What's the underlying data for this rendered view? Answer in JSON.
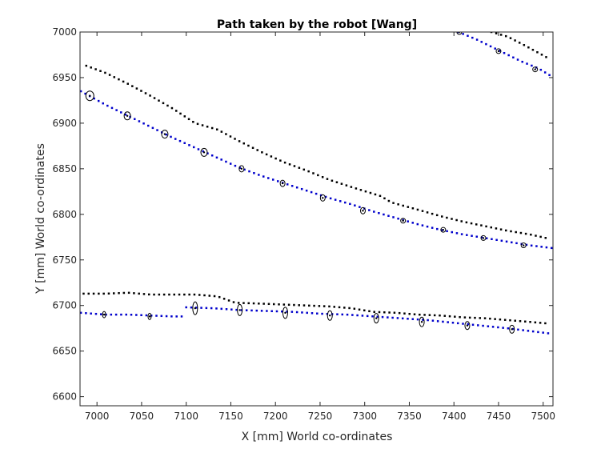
{
  "chart_data": {
    "type": "scatter",
    "title": "Path taken by the robot [Wang]",
    "xlabel": "X [mm] World co-ordinates",
    "ylabel": "Y [mm] World co-ordinates",
    "xlim": [
      6981,
      7511
    ],
    "ylim": [
      6590,
      7000
    ],
    "xticks": [
      7000,
      7050,
      7100,
      7150,
      7200,
      7250,
      7300,
      7350,
      7400,
      7450,
      7500
    ],
    "yticks": [
      6600,
      6650,
      6700,
      6750,
      6800,
      6850,
      6900,
      6950,
      7000
    ],
    "grid": false,
    "series": [
      {
        "color": "#000000",
        "marker": "dot",
        "segments": [
          [
            [
              6988,
              6963
            ],
            [
              7010,
              6955
            ],
            [
              7035,
              6943
            ],
            [
              7060,
              6930
            ],
            [
              7085,
              6916
            ],
            [
              7110,
              6900
            ],
            [
              7135,
              6893
            ],
            [
              7160,
              6880
            ],
            [
              7185,
              6868
            ],
            [
              7210,
              6857
            ],
            [
              7235,
              6848
            ],
            [
              7260,
              6838
            ],
            [
              7285,
              6830
            ],
            [
              7318,
              6820
            ],
            [
              7330,
              6813
            ],
            [
              7360,
              6805
            ],
            [
              7385,
              6798
            ],
            [
              7410,
              6792
            ],
            [
              7435,
              6787
            ],
            [
              7460,
              6782
            ],
            [
              7485,
              6778
            ],
            [
              7508,
              6773
            ]
          ],
          [
            [
              7442,
              7000
            ],
            [
              7460,
              6995
            ],
            [
              7480,
              6985
            ],
            [
              7495,
              6977
            ],
            [
              7508,
              6970
            ]
          ],
          [
            [
              6985,
              6713
            ],
            [
              7010,
              6713
            ],
            [
              7035,
              6714
            ],
            [
              7060,
              6712
            ],
            [
              7085,
              6712
            ],
            [
              7110,
              6712
            ],
            [
              7135,
              6710
            ],
            [
              7155,
              6703
            ],
            [
              7185,
              6702
            ],
            [
              7210,
              6701
            ],
            [
              7235,
              6700
            ],
            [
              7260,
              6699
            ],
            [
              7285,
              6697
            ],
            [
              7310,
              6693
            ],
            [
              7335,
              6692
            ],
            [
              7360,
              6690
            ],
            [
              7385,
              6689
            ],
            [
              7410,
              6687
            ],
            [
              7435,
              6686
            ],
            [
              7460,
              6684
            ],
            [
              7485,
              6682
            ],
            [
              7508,
              6680
            ]
          ]
        ]
      },
      {
        "color": "#0000cc",
        "marker": "dot",
        "segments": [
          [
            [
              6982,
              6935
            ],
            [
              7010,
              6920
            ],
            [
              7035,
              6908
            ],
            [
              7060,
              6896
            ],
            [
              7085,
              6884
            ],
            [
              7110,
              6873
            ],
            [
              7135,
              6862
            ],
            [
              7160,
              6851
            ],
            [
              7185,
              6842
            ],
            [
              7210,
              6834
            ],
            [
              7235,
              6826
            ],
            [
              7260,
              6818
            ],
            [
              7285,
              6811
            ],
            [
              7310,
              6803
            ],
            [
              7335,
              6796
            ],
            [
              7360,
              6789
            ],
            [
              7385,
              6783
            ],
            [
              7410,
              6778
            ],
            [
              7435,
              6774
            ],
            [
              7460,
              6770
            ],
            [
              7485,
              6766
            ],
            [
              7510,
              6763
            ]
          ],
          [
            [
              7405,
              7000
            ],
            [
              7425,
              6992
            ],
            [
              7450,
              6980
            ],
            [
              7475,
              6968
            ],
            [
              7495,
              6960
            ],
            [
              7510,
              6951
            ]
          ],
          [
            [
              6982,
              6692
            ],
            [
              7010,
              6690
            ],
            [
              7035,
              6690
            ],
            [
              7060,
              6689
            ],
            [
              7085,
              6688
            ],
            [
              7098,
              6688
            ]
          ],
          [
            [
              7100,
              6698
            ],
            [
              7130,
              6697
            ],
            [
              7160,
              6695
            ],
            [
              7190,
              6694
            ],
            [
              7220,
              6693
            ],
            [
              7250,
              6691
            ],
            [
              7280,
              6690
            ],
            [
              7310,
              6688
            ],
            [
              7340,
              6686
            ],
            [
              7370,
              6684
            ],
            [
              7400,
              6681
            ],
            [
              7430,
              6678
            ],
            [
              7460,
              6675
            ],
            [
              7485,
              6672
            ],
            [
              7510,
              6669
            ]
          ]
        ]
      }
    ],
    "ellipses": [
      {
        "x": 6992,
        "y": 6930,
        "rx": 5,
        "ry": 6
      },
      {
        "x": 7034,
        "y": 6908,
        "rx": 4,
        "ry": 5
      },
      {
        "x": 7076,
        "y": 6888,
        "rx": 4,
        "ry": 5
      },
      {
        "x": 7120,
        "y": 6868,
        "rx": 4,
        "ry": 5
      },
      {
        "x": 7162,
        "y": 6850,
        "rx": 3,
        "ry": 4
      },
      {
        "x": 7208,
        "y": 6834,
        "rx": 3,
        "ry": 4
      },
      {
        "x": 7253,
        "y": 6818,
        "rx": 3,
        "ry": 4
      },
      {
        "x": 7298,
        "y": 6804,
        "rx": 3,
        "ry": 4
      },
      {
        "x": 7343,
        "y": 6793,
        "rx": 3,
        "ry": 3
      },
      {
        "x": 7388,
        "y": 6783,
        "rx": 3,
        "ry": 3
      },
      {
        "x": 7433,
        "y": 6774,
        "rx": 3,
        "ry": 3
      },
      {
        "x": 7478,
        "y": 6766,
        "rx": 3,
        "ry": 3
      },
      {
        "x": 7406,
        "y": 7000,
        "rx": 3,
        "ry": 3
      },
      {
        "x": 7450,
        "y": 6979,
        "rx": 3,
        "ry": 3
      },
      {
        "x": 7491,
        "y": 6959,
        "rx": 3,
        "ry": 3
      },
      {
        "x": 7008,
        "y": 6690,
        "rx": 2,
        "ry": 4
      },
      {
        "x": 7059,
        "y": 6688,
        "rx": 2,
        "ry": 4
      },
      {
        "x": 7110,
        "y": 6697,
        "rx": 3,
        "ry": 8
      },
      {
        "x": 7160,
        "y": 6695,
        "rx": 3,
        "ry": 7
      },
      {
        "x": 7211,
        "y": 6692,
        "rx": 3,
        "ry": 7
      },
      {
        "x": 7261,
        "y": 6689,
        "rx": 3,
        "ry": 6
      },
      {
        "x": 7313,
        "y": 6686,
        "rx": 3,
        "ry": 6
      },
      {
        "x": 7364,
        "y": 6682,
        "rx": 3,
        "ry": 6
      },
      {
        "x": 7415,
        "y": 6678,
        "rx": 3,
        "ry": 5
      },
      {
        "x": 7465,
        "y": 6674,
        "rx": 3,
        "ry": 5
      }
    ]
  }
}
